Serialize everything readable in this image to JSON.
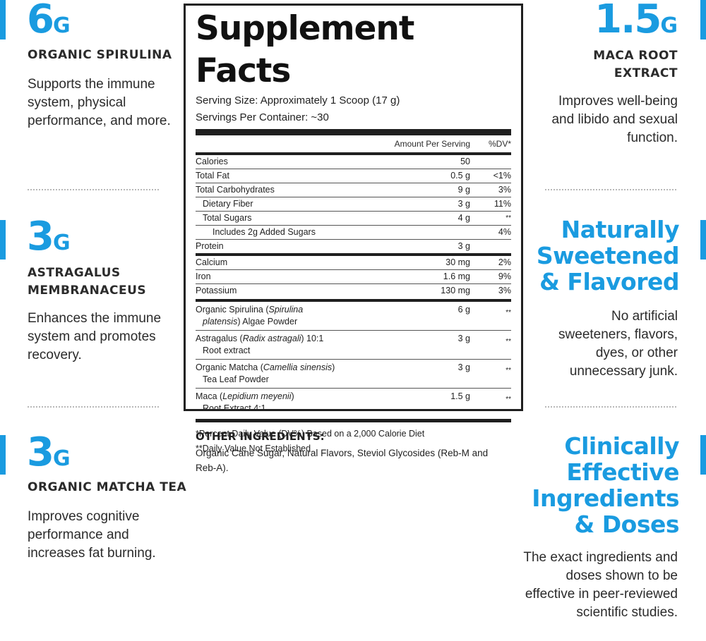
{
  "left_features": [
    {
      "amount": "6",
      "unit": "G",
      "name": "ORGANIC SPIRULINA",
      "desc": "Supports the immune system, physical performance, and more."
    },
    {
      "amount": "3",
      "unit": "G",
      "name": "ASTRAGALUS MEMBRANACEUS",
      "desc": "Enhances the immune system and promotes recovery."
    },
    {
      "amount": "3",
      "unit": "G",
      "name": "ORGANIC MATCHA TEA",
      "desc": "Improves cognitive performance and increases fat burning."
    }
  ],
  "right_features": [
    {
      "amount": "1.5",
      "unit": "G",
      "name": "MACA ROOT EXTRACT",
      "desc": "Improves well-being and libido and sexual function."
    },
    {
      "heading": "Naturally Sweetened & Flavored",
      "desc": "No artificial sweeteners, flavors, dyes, or other unnecessary junk."
    },
    {
      "heading": "Clinically Effective Ingredients & Doses",
      "desc": "The exact ingredients and doses shown to be effective in peer-reviewed scientific studies."
    }
  ],
  "facts": {
    "title": "Supplement Facts",
    "serving_size": "Serving Size: Approximately 1 Scoop (17 g)",
    "servings": "Servings Per Container: ~30",
    "col_amount": "Amount Per Serving",
    "col_dv": "%DV*",
    "nutrients": [
      {
        "label": "Calories",
        "amount": "50",
        "dv": ""
      },
      {
        "label": "Total Fat",
        "amount": "0.5 g",
        "dv": "<1%"
      },
      {
        "label": "Total Carbohydrates",
        "amount": "9 g",
        "dv": "3%"
      },
      {
        "label": "Dietary Fiber",
        "amount": "3 g",
        "dv": "11%"
      },
      {
        "label": "Total Sugars",
        "amount": "4 g",
        "dv": "**"
      },
      {
        "label": "Includes 2g Added Sugars",
        "amount": "",
        "dv": "4%"
      },
      {
        "label": "Protein",
        "amount": "3 g",
        "dv": ""
      }
    ],
    "minerals": [
      {
        "label": "Calcium",
        "amount": "30 mg",
        "dv": "2%"
      },
      {
        "label": "Iron",
        "amount": "1.6 mg",
        "dv": "9%"
      },
      {
        "label": "Potassium",
        "amount": "130 mg",
        "dv": "3%"
      }
    ],
    "ingredients": [
      {
        "line1": "Organic Spirulina (",
        "latin": "Spirulina",
        "line1b": "",
        "line2_latin": "platensis",
        "line2": ") Algae Powder",
        "amount": "6 g",
        "dv": "**"
      },
      {
        "line1": "Astragalus (",
        "latin": "Radix astragali",
        "line1b": ") 10:1",
        "line2_latin": "",
        "line2": "Root extract",
        "amount": "3 g",
        "dv": "**"
      },
      {
        "line1": "Organic Matcha (",
        "latin": "Camellia sinensis",
        "line1b": ")",
        "line2_latin": "",
        "line2": "Tea Leaf Powder",
        "amount": "3 g",
        "dv": "**"
      },
      {
        "line1": "Maca (",
        "latin": "Lepidium meyenii",
        "line1b": ")",
        "line2_latin": "",
        "line2": "Root Extract 4:1",
        "amount": "1.5 g",
        "dv": "**"
      }
    ],
    "footnote1": "*Percent Daily Value (DV%) Based on a 2,000 Calorie Diet",
    "footnote2": "**Daily Value Not Established"
  },
  "other_ingredients": {
    "heading": "OTHER INGREDIENTS:",
    "text": "Organic Cane Sugar, Natural Flavors, Steviol Glycosides (Reb-M and Reb-A)."
  },
  "colors": {
    "accent": "#1a9be0",
    "text": "#2b2b2b",
    "border": "#1f1f1f"
  }
}
